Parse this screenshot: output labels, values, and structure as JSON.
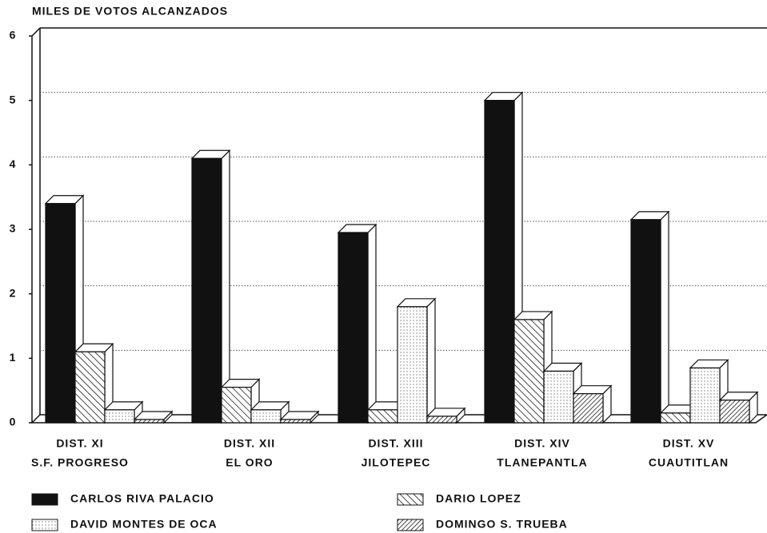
{
  "chart_data": {
    "type": "bar3d",
    "title": "MILES DE VOTOS ALCANZADOS",
    "categories": [
      [
        "DIST. XI",
        "S.F. PROGRESO"
      ],
      [
        "DIST. XII",
        "EL ORO"
      ],
      [
        "DIST. XIII",
        "JILOTEPEC"
      ],
      [
        "DIST. XIV",
        "TLANEPANTLA"
      ],
      [
        "DIST. XV",
        "CUAUTITLAN"
      ]
    ],
    "series": [
      {
        "name": "CARLOS RIVA PALACIO",
        "pattern": "solid",
        "color": "#111111",
        "values": [
          3.4,
          4.1,
          2.95,
          5.0,
          3.15
        ]
      },
      {
        "name": "DARIO LOPEZ",
        "pattern": "hatch",
        "color": "#111111",
        "values": [
          1.1,
          0.55,
          0.2,
          1.6,
          0.15
        ]
      },
      {
        "name": "DAVID MONTES DE OCA",
        "pattern": "dots",
        "color": "#111111",
        "values": [
          0.2,
          0.2,
          1.8,
          0.8,
          0.85
        ]
      },
      {
        "name": "DOMINGO S. TRUEBA",
        "pattern": "backhatch",
        "color": "#111111",
        "values": [
          0.05,
          0.05,
          0.1,
          0.45,
          0.35
        ]
      }
    ],
    "ylim": [
      0,
      6
    ],
    "yticks": [
      0,
      1,
      2,
      3,
      4,
      5,
      6
    ],
    "grid": true
  }
}
